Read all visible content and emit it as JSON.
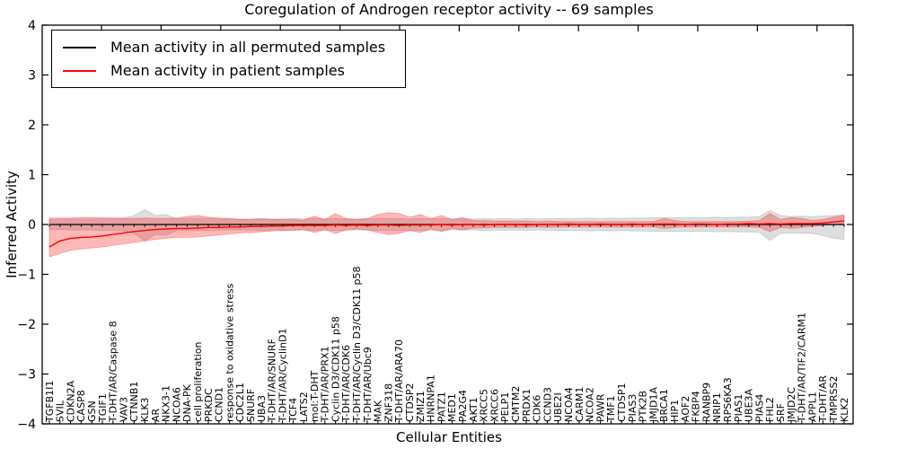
{
  "chart_data": {
    "type": "line",
    "title": "Coregulation of Androgen receptor activity -- 69 samples",
    "xlabel": "Cellular Entities",
    "ylabel": "Inferred Activity",
    "ylim": [
      -4,
      4
    ],
    "ytick_labels": [
      "4",
      "3",
      "2",
      "1",
      "0",
      "−1",
      "−2",
      "−3",
      "−4"
    ],
    "yticks": [
      4,
      3,
      2,
      1,
      0,
      -1,
      -2,
      -3,
      -4
    ],
    "grid": false,
    "legend_position": "upper left",
    "categories": [
      "TGFB1I1",
      "SVIL",
      "CDKN2A",
      "CASP8",
      "GSN",
      "TGIF1",
      "T-DHT/AR/Caspase 8",
      "VAV3",
      "CTNNB1",
      "KLK3",
      "AR",
      "NKX3-1",
      "NCOA6",
      "DNA-PK",
      "cell proliferation",
      "PRKDC",
      "CCND1",
      "response to oxidative stress",
      "CDC2L1",
      "SNURF",
      "UBA3",
      "T-DHT/AR/SNURF",
      "T-DHT/AR/CyclinD1",
      "TCF4",
      "LATS2",
      "mol:T-DHT",
      "T-DHT/AR/PRX1",
      "Cyclin D3/CDK11 p58",
      "T-DHT/AR/CDK6",
      "T-DHT/AR/Cyclin D3/CDK11 p58",
      "T-DHT/AR/Ubc9",
      "MAK",
      "ZNF318",
      "T-DHT/AR/ARA70",
      "CTDSP2",
      "ZMIZ1",
      "HNRNPA1",
      "PATZ1",
      "MED1",
      "PA2G4",
      "AKT1",
      "XRCC5",
      "XRCC6",
      "PELP1",
      "CMTM2",
      "PRDX1",
      "CDK6",
      "CCND3",
      "UBE2I",
      "NCOA4",
      "CARM1",
      "NCOA2",
      "PAWR",
      "TMF1",
      "CTDSP1",
      "PIAS3",
      "PTK2B",
      "JMJD1A",
      "BRCA1",
      "HIP1",
      "AOF2",
      "FKBP4",
      "RANBP9",
      "NRIP1",
      "RPS6KA3",
      "PIAS1",
      "UBE3A",
      "PIAS4",
      "FHL2",
      "SRF",
      "JMJD2C",
      "T-DHT/AR/TIF2/CARM1",
      "APPL1",
      "T-DHT/AR",
      "TMPRSS2",
      "KLK2"
    ],
    "series": [
      {
        "name": "Mean activity in all permuted samples",
        "color": "#000000",
        "band_fill": "#000000",
        "band_opacity": 0.13,
        "values": [
          0,
          0,
          0,
          0,
          0,
          0,
          0,
          0,
          0,
          0,
          0,
          0,
          0,
          0,
          0,
          0,
          0,
          0,
          0,
          0,
          0,
          0,
          0,
          0,
          0,
          0,
          0,
          0,
          0,
          0,
          0,
          0,
          0,
          0,
          0,
          0,
          0,
          0,
          0,
          0,
          0,
          0,
          0,
          0,
          0,
          0,
          0,
          0,
          0,
          0,
          0,
          0,
          0,
          0,
          0,
          0,
          0,
          0,
          0,
          0,
          0,
          0,
          0,
          0,
          0,
          0,
          0,
          0,
          0,
          0,
          0,
          0,
          0,
          0,
          0,
          0
        ],
        "band_upper": [
          0.1,
          0.1,
          0.11,
          0.11,
          0.11,
          0.12,
          0.12,
          0.13,
          0.18,
          0.3,
          0.18,
          0.2,
          0.12,
          0.12,
          0.12,
          0.12,
          0.11,
          0.11,
          0.11,
          0.11,
          0.12,
          0.11,
          0.11,
          0.12,
          0.11,
          0.12,
          0.11,
          0.12,
          0.11,
          0.11,
          0.11,
          0.12,
          0.12,
          0.12,
          0.11,
          0.12,
          0.11,
          0.12,
          0.11,
          0.11,
          0.11,
          0.12,
          0.11,
          0.12,
          0.11,
          0.12,
          0.11,
          0.12,
          0.12,
          0.12,
          0.12,
          0.13,
          0.12,
          0.13,
          0.12,
          0.13,
          0.13,
          0.14,
          0.14,
          0.14,
          0.14,
          0.14,
          0.14,
          0.15,
          0.14,
          0.15,
          0.15,
          0.16,
          0.28,
          0.18,
          0.16,
          0.17,
          0.16,
          0.17,
          0.18,
          0.2
        ],
        "band_lower": [
          -0.1,
          -0.1,
          -0.11,
          -0.11,
          -0.11,
          -0.12,
          -0.12,
          -0.13,
          -0.18,
          -0.33,
          -0.2,
          -0.22,
          -0.12,
          -0.12,
          -0.12,
          -0.12,
          -0.11,
          -0.11,
          -0.11,
          -0.11,
          -0.12,
          -0.11,
          -0.11,
          -0.12,
          -0.11,
          -0.12,
          -0.11,
          -0.12,
          -0.11,
          -0.11,
          -0.11,
          -0.12,
          -0.12,
          -0.12,
          -0.11,
          -0.12,
          -0.11,
          -0.12,
          -0.11,
          -0.11,
          -0.11,
          -0.12,
          -0.11,
          -0.12,
          -0.11,
          -0.12,
          -0.11,
          -0.12,
          -0.12,
          -0.12,
          -0.12,
          -0.13,
          -0.12,
          -0.13,
          -0.12,
          -0.13,
          -0.13,
          -0.14,
          -0.14,
          -0.14,
          -0.14,
          -0.14,
          -0.14,
          -0.15,
          -0.14,
          -0.15,
          -0.15,
          -0.16,
          -0.32,
          -0.18,
          -0.17,
          -0.18,
          -0.18,
          -0.22,
          -0.28,
          -0.3
        ]
      },
      {
        "name": "Mean activity in patient samples",
        "color": "#ff0000",
        "band_fill": "#ff0000",
        "band_opacity": 0.28,
        "values": [
          -0.45,
          -0.33,
          -0.28,
          -0.26,
          -0.25,
          -0.23,
          -0.2,
          -0.17,
          -0.14,
          -0.12,
          -0.1,
          -0.09,
          -0.08,
          -0.08,
          -0.07,
          -0.06,
          -0.06,
          -0.05,
          -0.05,
          -0.04,
          -0.04,
          -0.03,
          -0.03,
          -0.02,
          -0.02,
          -0.02,
          -0.02,
          -0.01,
          -0.02,
          -0.01,
          -0.02,
          -0.01,
          -0.01,
          -0.02,
          -0.01,
          -0.01,
          -0.01,
          0,
          -0.01,
          0,
          0,
          -0.01,
          0,
          0,
          0,
          -0.01,
          0,
          0,
          0,
          0.01,
          0,
          0,
          0.01,
          0,
          0,
          0.01,
          0,
          0.01,
          0.01,
          0.01,
          0,
          0.01,
          0.01,
          0,
          0.01,
          0.01,
          0.02,
          0.01,
          0.02,
          0.01,
          0.02,
          0.02,
          0.02,
          0.03,
          0.05,
          0.07
        ],
        "band_upper": [
          0.13,
          0.13,
          0.13,
          0.14,
          0.14,
          0.13,
          0.13,
          0.12,
          0.12,
          0.13,
          0.12,
          0.12,
          0.13,
          0.16,
          0.18,
          0.15,
          0.13,
          0.12,
          0.1,
          0.1,
          0.11,
          0.1,
          0.1,
          0.1,
          0.09,
          0.17,
          0.1,
          0.22,
          0.12,
          0.1,
          0.12,
          0.2,
          0.24,
          0.22,
          0.15,
          0.2,
          0.12,
          0.18,
          0.1,
          0.14,
          0.08,
          0.08,
          0.07,
          0.07,
          0.07,
          0.07,
          0.06,
          0.07,
          0.06,
          0.06,
          0.06,
          0.06,
          0.06,
          0.06,
          0.06,
          0.06,
          0.06,
          0.06,
          0.12,
          0.08,
          0.06,
          0.06,
          0.06,
          0.06,
          0.06,
          0.06,
          0.07,
          0.08,
          0.22,
          0.1,
          0.14,
          0.12,
          0.08,
          0.1,
          0.15,
          0.18
        ],
        "band_lower": [
          -0.65,
          -0.58,
          -0.52,
          -0.49,
          -0.47,
          -0.45,
          -0.42,
          -0.39,
          -0.36,
          -0.33,
          -0.3,
          -0.28,
          -0.26,
          -0.26,
          -0.25,
          -0.23,
          -0.21,
          -0.19,
          -0.17,
          -0.16,
          -0.15,
          -0.13,
          -0.12,
          -0.11,
          -0.1,
          -0.16,
          -0.1,
          -0.18,
          -0.11,
          -0.09,
          -0.11,
          -0.16,
          -0.2,
          -0.18,
          -0.12,
          -0.16,
          -0.09,
          -0.14,
          -0.08,
          -0.11,
          -0.07,
          -0.07,
          -0.06,
          -0.06,
          -0.06,
          -0.06,
          -0.05,
          -0.06,
          -0.05,
          -0.05,
          -0.05,
          -0.05,
          -0.05,
          -0.05,
          -0.05,
          -0.05,
          -0.05,
          -0.05,
          -0.08,
          -0.06,
          -0.05,
          -0.05,
          -0.05,
          -0.05,
          -0.05,
          -0.05,
          -0.05,
          -0.06,
          -0.14,
          -0.06,
          -0.08,
          -0.06,
          -0.04,
          -0.02,
          0,
          0.01
        ]
      }
    ]
  }
}
